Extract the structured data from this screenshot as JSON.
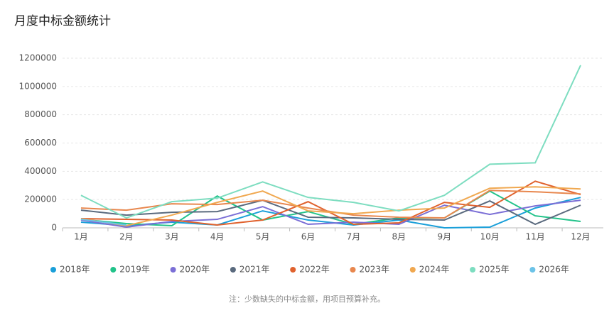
{
  "chart_data": {
    "type": "line",
    "title": "月度中标金额统计",
    "categories": [
      "1月",
      "2月",
      "3月",
      "4月",
      "5月",
      "6月",
      "7月",
      "8月",
      "9月",
      "10月",
      "11月",
      "12月"
    ],
    "ylim": [
      0,
      1200000
    ],
    "yticks": [
      0,
      200000,
      400000,
      600000,
      800000,
      1000000,
      1200000
    ],
    "grid": true,
    "series": [
      {
        "name": "2018年",
        "color": "#1a9fd9",
        "values": [
          40000,
          15000,
          40000,
          20000,
          120000,
          55000,
          20000,
          55000,
          0,
          5000,
          140000,
          215000
        ]
      },
      {
        "name": "2019年",
        "color": "#22c38a",
        "values": [
          60000,
          30000,
          15000,
          225000,
          55000,
          115000,
          25000,
          70000,
          70000,
          260000,
          85000,
          45000
        ]
      },
      {
        "name": "2020年",
        "color": "#7b6fd6",
        "values": [
          55000,
          5000,
          45000,
          60000,
          150000,
          25000,
          40000,
          25000,
          160000,
          95000,
          155000,
          195000
        ]
      },
      {
        "name": "2021年",
        "color": "#5a6a7e",
        "values": [
          125000,
          90000,
          110000,
          115000,
          195000,
          75000,
          70000,
          60000,
          55000,
          190000,
          25000,
          160000
        ]
      },
      {
        "name": "2022年",
        "color": "#e0622e",
        "values": [
          65000,
          60000,
          55000,
          20000,
          55000,
          185000,
          25000,
          35000,
          180000,
          145000,
          330000,
          235000
        ]
      },
      {
        "name": "2023年",
        "color": "#e8874e",
        "values": [
          140000,
          125000,
          170000,
          165000,
          195000,
          140000,
          90000,
          75000,
          70000,
          265000,
          255000,
          240000
        ]
      },
      {
        "name": "2024年",
        "color": "#f0a850",
        "values": [
          65000,
          15000,
          90000,
          180000,
          260000,
          120000,
          100000,
          125000,
          140000,
          280000,
          290000,
          275000
        ]
      },
      {
        "name": "2025年",
        "color": "#7dddc0",
        "values": [
          230000,
          70000,
          185000,
          210000,
          325000,
          215000,
          180000,
          120000,
          230000,
          450000,
          460000,
          1150000
        ]
      },
      {
        "name": "2026年",
        "color": "#6cc3e8",
        "values": [
          60000,
          20000,
          null,
          null,
          null,
          null,
          null,
          null,
          null,
          null,
          null,
          null
        ]
      }
    ],
    "note": "注：少数缺失的中标金额，用项目预算补充。"
  }
}
